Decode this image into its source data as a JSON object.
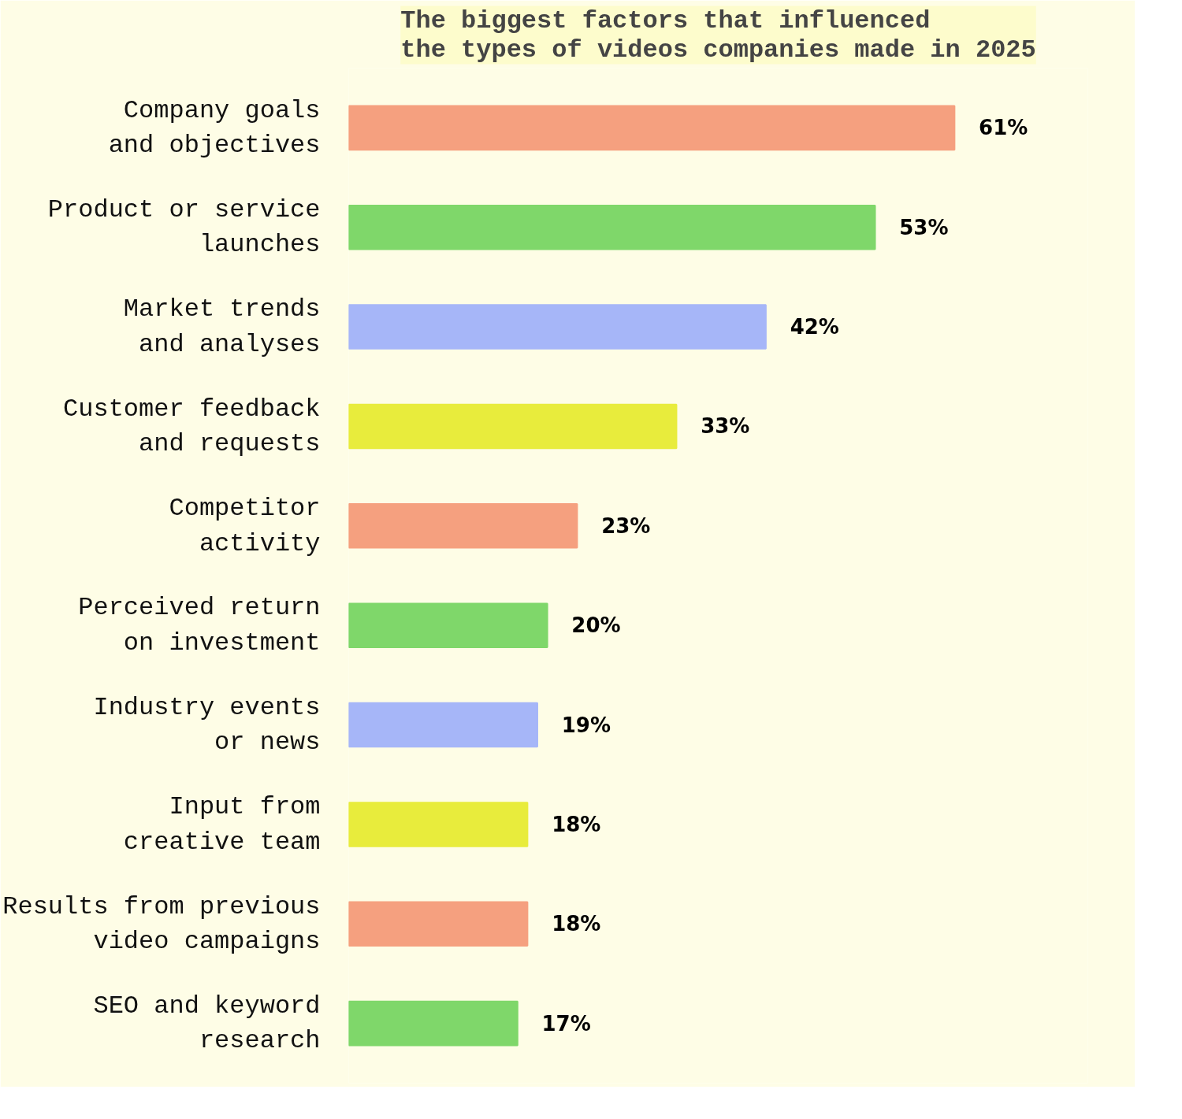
{
  "chart_data": {
    "type": "bar",
    "orientation": "horizontal",
    "title": "The biggest factors that influenced\nthe types of videos companies made in 2025",
    "categories": [
      "Company goals\nand objectives",
      "Product or service\nlaunches",
      "Market trends\nand analyses",
      "Customer feedback\nand requests",
      "Competitor\nactivity",
      "Perceived return\non investment",
      "Industry events\nor news",
      "Input from\ncreative team",
      "Results from previous\nvideo campaigns",
      "SEO and keyword\nresearch"
    ],
    "values": [
      61,
      53,
      42,
      33,
      23,
      20,
      19,
      18,
      18,
      17
    ],
    "value_labels": [
      "61%",
      "53%",
      "42%",
      "33%",
      "23%",
      "20%",
      "19%",
      "18%",
      "18%",
      "17%"
    ],
    "colors": [
      "#f5a07f",
      "#7fd76a",
      "#a6b6f8",
      "#e8ec3c",
      "#f5a07f",
      "#7fd76a",
      "#a6b6f8",
      "#e8ec3c",
      "#f5a07f",
      "#7fd76a"
    ],
    "tick_labels": "y",
    "grid": false
  }
}
